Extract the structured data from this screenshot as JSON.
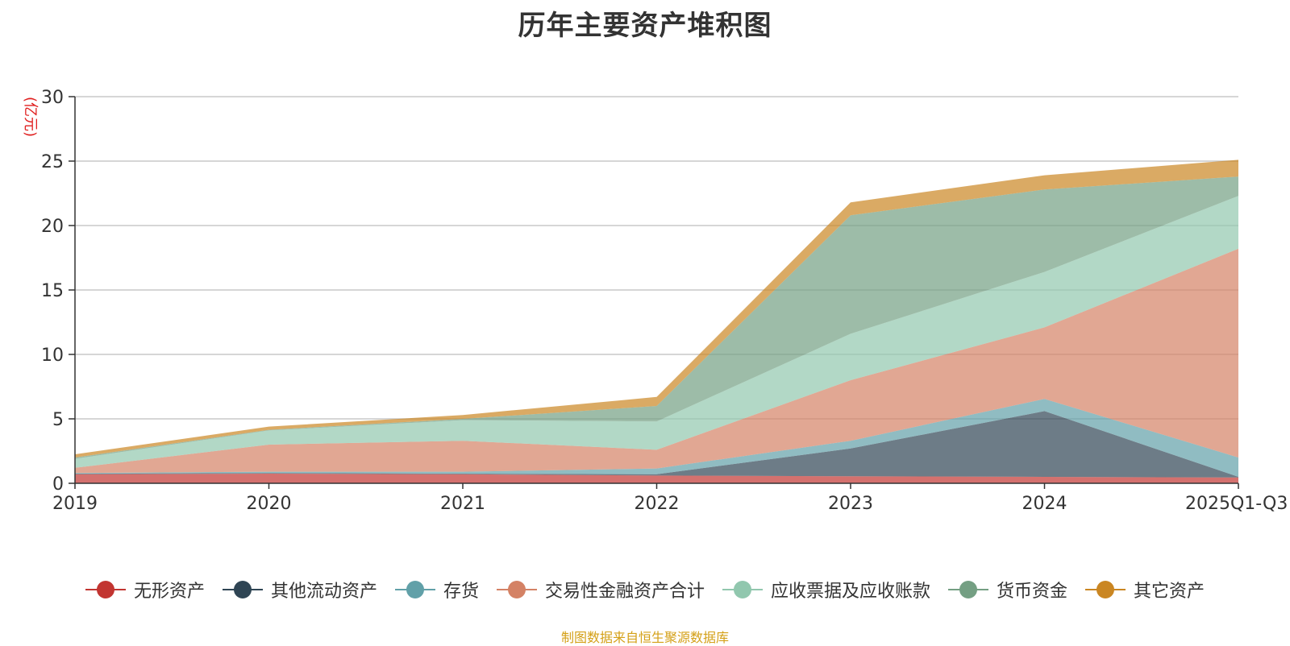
{
  "chart_data": {
    "type": "area",
    "stacked": true,
    "title": "历年主要资产堆积图",
    "ylabel": "(亿元)",
    "xlabel": "",
    "ylim": [
      0,
      30
    ],
    "yticks": [
      0,
      5,
      10,
      15,
      20,
      25,
      30
    ],
    "categories": [
      "2019",
      "2020",
      "2021",
      "2022",
      "2023",
      "2024",
      "2025Q1-Q3"
    ],
    "grid": true,
    "legend_position": "bottom",
    "series": [
      {
        "name": "无形资产",
        "color": "#c23531",
        "values": [
          0.7,
          0.75,
          0.7,
          0.6,
          0.55,
          0.5,
          0.45
        ]
      },
      {
        "name": "其他流动资产",
        "color": "#2f4554",
        "values": [
          0.05,
          0.05,
          0.05,
          0.1,
          2.15,
          5.1,
          0.05
        ]
      },
      {
        "name": "存货",
        "color": "#61a0a8",
        "values": [
          0.05,
          0.1,
          0.15,
          0.45,
          0.6,
          0.95,
          1.5
        ]
      },
      {
        "name": "交易性金融资产合计",
        "color": "#d48265",
        "values": [
          0.4,
          2.1,
          2.4,
          1.45,
          4.7,
          5.55,
          16.2
        ]
      },
      {
        "name": "应收票据及应收账款",
        "color": "#91c7ae",
        "values": [
          0.7,
          1.1,
          1.6,
          2.2,
          3.6,
          4.3,
          4.1
        ]
      },
      {
        "name": "货币资金",
        "color": "#749f83",
        "values": [
          0.1,
          0.05,
          0.1,
          1.2,
          9.2,
          6.4,
          1.5
        ]
      },
      {
        "name": "其它资产",
        "color": "#ca8622",
        "values": [
          0.25,
          0.25,
          0.3,
          0.7,
          1.0,
          1.1,
          1.3
        ]
      }
    ],
    "source_note": "制图数据来自恒生聚源数据库"
  }
}
